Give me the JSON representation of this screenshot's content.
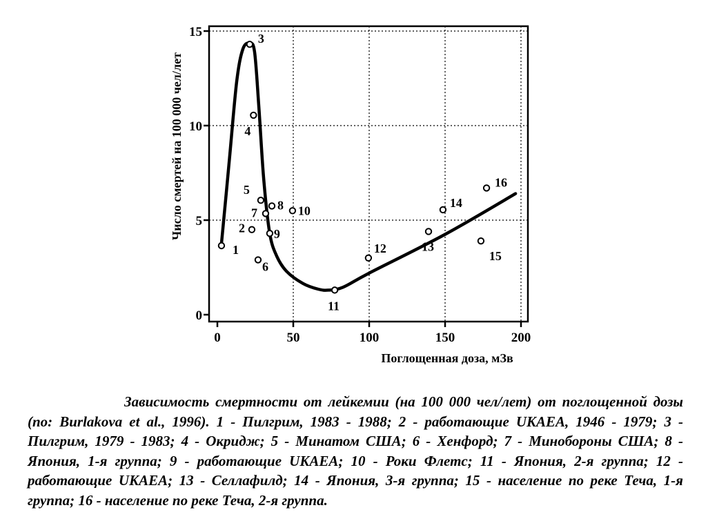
{
  "chart_data": {
    "type": "scatter",
    "xlabel": "Поглощенная доза, мЗв",
    "ylabel": "Число смертей на 100 000 чел/лет",
    "xlim": [
      0,
      200
    ],
    "ylim": [
      0,
      15
    ],
    "x_ticks": [
      {
        "value": 0,
        "label": "0"
      },
      {
        "value": 50,
        "label": "50"
      },
      {
        "value": 100,
        "label": "100"
      },
      {
        "value": 150,
        "label": "150"
      },
      {
        "value": 200,
        "label": "200"
      }
    ],
    "y_ticks": [
      {
        "value": 0,
        "label": "0"
      },
      {
        "value": 5,
        "label": "5"
      },
      {
        "value": 10,
        "label": "10"
      },
      {
        "value": 15,
        "label": "15"
      }
    ],
    "grid": true,
    "points": [
      {
        "label": "1",
        "x": 2.7,
        "y": 3.65
      },
      {
        "label": "2",
        "x": 22.7,
        "y": 4.5
      },
      {
        "label": "3",
        "x": 21.3,
        "y": 14.3
      },
      {
        "label": "4",
        "x": 23.8,
        "y": 10.55
      },
      {
        "label": "5",
        "x": 28.6,
        "y": 6.05
      },
      {
        "label": "6",
        "x": 26.8,
        "y": 2.9
      },
      {
        "label": "7",
        "x": 31.8,
        "y": 5.35
      },
      {
        "label": "8",
        "x": 35.9,
        "y": 5.75
      },
      {
        "label": "9",
        "x": 34.5,
        "y": 4.3
      },
      {
        "label": "10",
        "x": 49.5,
        "y": 5.5
      },
      {
        "label": "11",
        "x": 77.3,
        "y": 1.3
      },
      {
        "label": "12",
        "x": 99.5,
        "y": 3.0
      },
      {
        "label": "13",
        "x": 139.1,
        "y": 4.4
      },
      {
        "label": "14",
        "x": 148.6,
        "y": 5.55
      },
      {
        "label": "15",
        "x": 173.6,
        "y": 3.9
      },
      {
        "label": "16",
        "x": 177.3,
        "y": 6.7
      }
    ],
    "fit_curve": [
      {
        "x": 2.7,
        "y": 3.75
      },
      {
        "x": 7.7,
        "y": 8.0
      },
      {
        "x": 12.7,
        "y": 12.3
      },
      {
        "x": 16.8,
        "y": 14.05
      },
      {
        "x": 21.3,
        "y": 14.35
      },
      {
        "x": 24.5,
        "y": 13.9
      },
      {
        "x": 27.3,
        "y": 11.0
      },
      {
        "x": 30.5,
        "y": 7.2
      },
      {
        "x": 34.5,
        "y": 4.3
      },
      {
        "x": 39.1,
        "y": 3.1
      },
      {
        "x": 45.5,
        "y": 2.3
      },
      {
        "x": 56.4,
        "y": 1.65
      },
      {
        "x": 66.4,
        "y": 1.35
      },
      {
        "x": 73.2,
        "y": 1.3
      },
      {
        "x": 82.7,
        "y": 1.45
      },
      {
        "x": 100,
        "y": 2.2
      },
      {
        "x": 150,
        "y": 4.25
      },
      {
        "x": 196.4,
        "y": 6.4
      }
    ]
  },
  "caption": "Зависимость смертности от лейкемии (на 100 000 чел/лет) от поглощенной дозы (по: Burlakova et al., 1996). 1 - Пилгрим, 1983 - 1988; 2 - работающие UKAEA, 1946 - 1979; 3 - Пилгрим, 1979 - 1983; 4 - Окридж; 5 - Минатом США; 6 - Хенфорд; 7 - Минобороны США; 8 - Япония, 1-я группа; 9 - работающие UKAEA; 10 - Роки Флетс; 11 - Япония, 2-я группа; 12 - работающие UKAEA; 13 - Селлафилд; 14 - Япония, 3-я группа; 15 - население по реке Теча, 1-я группа; 16 - население по реке Теча, 2-я группа."
}
